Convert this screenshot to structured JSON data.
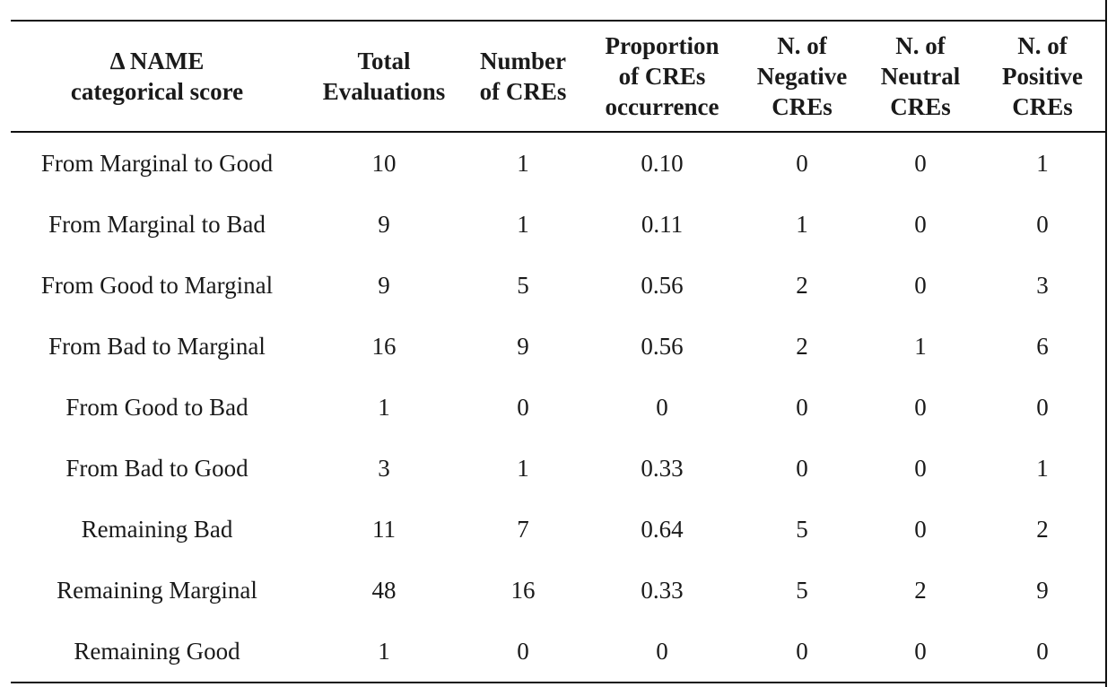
{
  "table": {
    "headers": [
      [
        "Δ NAME",
        "categorical score"
      ],
      [
        "Total",
        "Evaluations"
      ],
      [
        "Number",
        "of CREs"
      ],
      [
        "Proportion",
        "of CREs",
        "occurrence"
      ],
      [
        "N. of",
        "Negative",
        "CREs"
      ],
      [
        "N. of",
        "Neutral",
        "CREs"
      ],
      [
        "N. of",
        "Positive",
        "CREs"
      ]
    ],
    "rows": [
      [
        "From Marginal to Good",
        "10",
        "1",
        "0.10",
        "0",
        "0",
        "1"
      ],
      [
        "From Marginal to Bad",
        "9",
        "1",
        "0.11",
        "1",
        "0",
        "0"
      ],
      [
        "From Good to Marginal",
        "9",
        "5",
        "0.56",
        "2",
        "0",
        "3"
      ],
      [
        "From Bad to Marginal",
        "16",
        "9",
        "0.56",
        "2",
        "1",
        "6"
      ],
      [
        "From Good to Bad",
        "1",
        "0",
        "0",
        "0",
        "0",
        "0"
      ],
      [
        "From Bad to Good",
        "3",
        "1",
        "0.33",
        "0",
        "0",
        "1"
      ],
      [
        "Remaining Bad",
        "11",
        "7",
        "0.64",
        "5",
        "0",
        "2"
      ],
      [
        "Remaining Marginal",
        "48",
        "16",
        "0.33",
        "5",
        "2",
        "9"
      ],
      [
        "Remaining Good",
        "1",
        "0",
        "0",
        "0",
        "0",
        "0"
      ]
    ]
  }
}
